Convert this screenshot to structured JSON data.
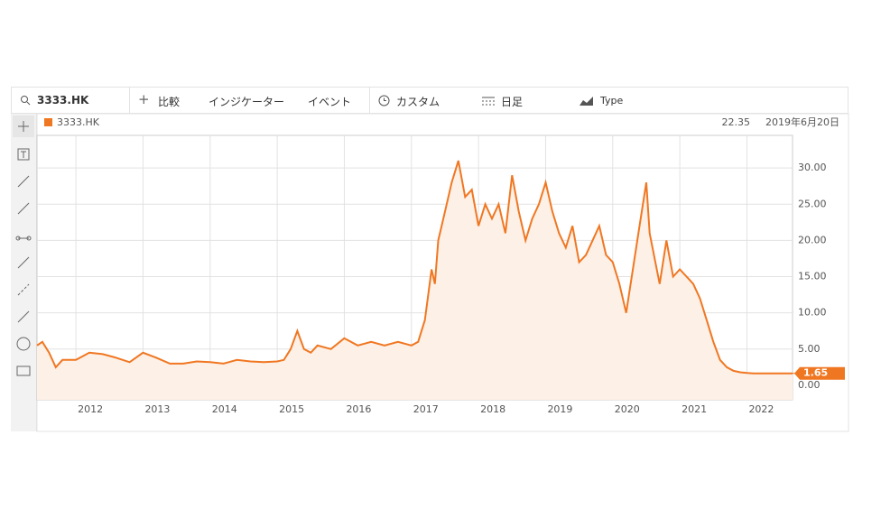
{
  "toolbar": {
    "symbol": "3333.HK",
    "compare": "比較",
    "indicator": "インジケーター",
    "event": "イベント",
    "custom": "カスタム",
    "period": "日足",
    "type": "Type"
  },
  "chart_data": {
    "type": "area",
    "crosshair_value": "22.35",
    "crosshair_date": "2019年6月20日",
    "current_value": 1.65,
    "xlim": [
      2011.42,
      2022.68
    ],
    "ylim": [
      -2,
      34.5
    ],
    "xticks": [
      2012,
      2013,
      2014,
      2015,
      2016,
      2017,
      2018,
      2019,
      2020,
      2021,
      2022
    ],
    "yticks": [
      {
        "value": 0,
        "label": "0.00"
      },
      {
        "value": 5,
        "label": "5.00"
      },
      {
        "value": 10,
        "label": "10.00"
      },
      {
        "value": 15,
        "label": "15.00"
      },
      {
        "value": 20,
        "label": "20.00"
      },
      {
        "value": 25,
        "label": "25.00"
      },
      {
        "value": 30,
        "label": "30.00"
      }
    ],
    "grid": true,
    "series": [
      {
        "name": "3333.HK",
        "color": "#f07722",
        "fill": "#fdf0e6",
        "x": [
          2011.42,
          2011.5,
          2011.6,
          2011.7,
          2011.8,
          2012.0,
          2012.2,
          2012.4,
          2012.6,
          2012.8,
          2013.0,
          2013.2,
          2013.4,
          2013.6,
          2013.8,
          2014.0,
          2014.2,
          2014.4,
          2014.6,
          2014.8,
          2015.0,
          2015.1,
          2015.2,
          2015.3,
          2015.4,
          2015.5,
          2015.6,
          2015.8,
          2016.0,
          2016.2,
          2016.4,
          2016.6,
          2016.8,
          2017.0,
          2017.1,
          2017.2,
          2017.3,
          2017.35,
          2017.4,
          2017.5,
          2017.6,
          2017.7,
          2017.8,
          2017.9,
          2018.0,
          2018.1,
          2018.2,
          2018.3,
          2018.4,
          2018.5,
          2018.6,
          2018.7,
          2018.8,
          2018.9,
          2019.0,
          2019.1,
          2019.2,
          2019.3,
          2019.4,
          2019.5,
          2019.6,
          2019.7,
          2019.8,
          2019.9,
          2020.0,
          2020.1,
          2020.2,
          2020.3,
          2020.4,
          2020.5,
          2020.55,
          2020.7,
          2020.8,
          2020.9,
          2021.0,
          2021.1,
          2021.2,
          2021.3,
          2021.4,
          2021.5,
          2021.6,
          2021.7,
          2021.8,
          2021.9,
          2022.0,
          2022.1,
          2022.68
        ],
        "values": [
          5.5,
          6,
          4.5,
          2.5,
          3.5,
          3.5,
          4.5,
          4.3,
          3.8,
          3.2,
          4.5,
          3.8,
          3,
          3,
          3.3,
          3.2,
          3,
          3.5,
          3.3,
          3.2,
          3.3,
          3.5,
          5,
          7.5,
          5,
          4.5,
          5.5,
          5,
          6.5,
          5.5,
          6,
          5.5,
          6,
          5.5,
          6,
          9,
          16,
          14,
          20,
          24,
          28,
          31,
          26,
          27,
          22,
          25,
          23,
          25,
          21,
          29,
          24,
          20,
          23,
          25,
          28,
          24,
          21,
          19,
          22,
          17,
          18,
          20,
          22,
          18,
          17,
          14,
          10,
          16,
          22,
          28,
          21,
          14,
          20,
          15,
          16,
          15,
          14,
          12,
          9,
          6,
          3.5,
          2.5,
          2,
          1.8,
          1.7,
          1.65,
          1.65
        ]
      }
    ]
  }
}
